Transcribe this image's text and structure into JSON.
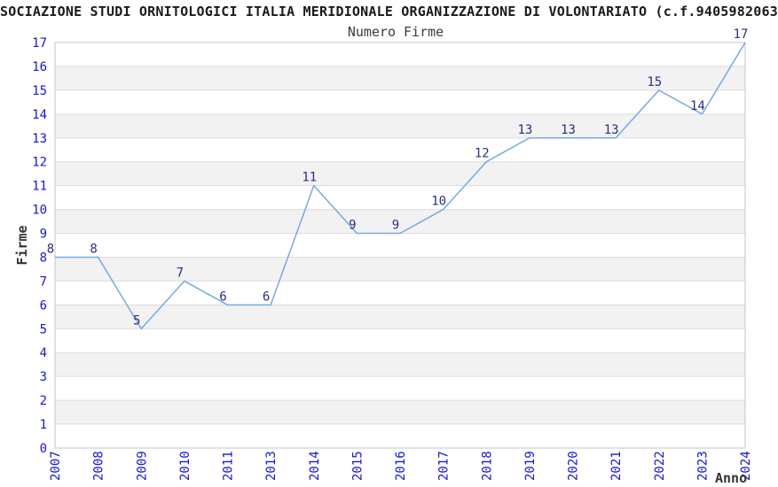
{
  "header": {
    "title": "SOCIAZIONE STUDI ORNITOLOGICI ITALIA MERIDIONALE ORGANIZZAZIONE DI VOLONTARIATO (c.f.9405982063",
    "subtitle": "Numero Firme"
  },
  "chart_data": {
    "type": "line",
    "title": "Numero Firme",
    "categories": [
      "2007",
      "2008",
      "2009",
      "2010",
      "2011",
      "2013",
      "2014",
      "2015",
      "2016",
      "2017",
      "2018",
      "2019",
      "2020",
      "2021",
      "2022",
      "2023",
      "2024"
    ],
    "values": [
      8,
      8,
      5,
      7,
      6,
      6,
      11,
      9,
      9,
      10,
      12,
      13,
      13,
      13,
      15,
      14,
      17
    ],
    "xlabel": "Anno",
    "ylabel": "Firme",
    "ylim": [
      0,
      17
    ],
    "ytick_step": 1,
    "grid": true,
    "banded_rows": true,
    "legend_position": "none",
    "point_labels": true,
    "colors": {
      "line": "#76a9df",
      "tick_label": "#1616cf",
      "point_label": "#2d2d82",
      "band": "#f2f2f2",
      "grid": "#dcdcdc",
      "border": "#c6c6c6",
      "text": "#333333",
      "background": "#ffffff"
    }
  }
}
